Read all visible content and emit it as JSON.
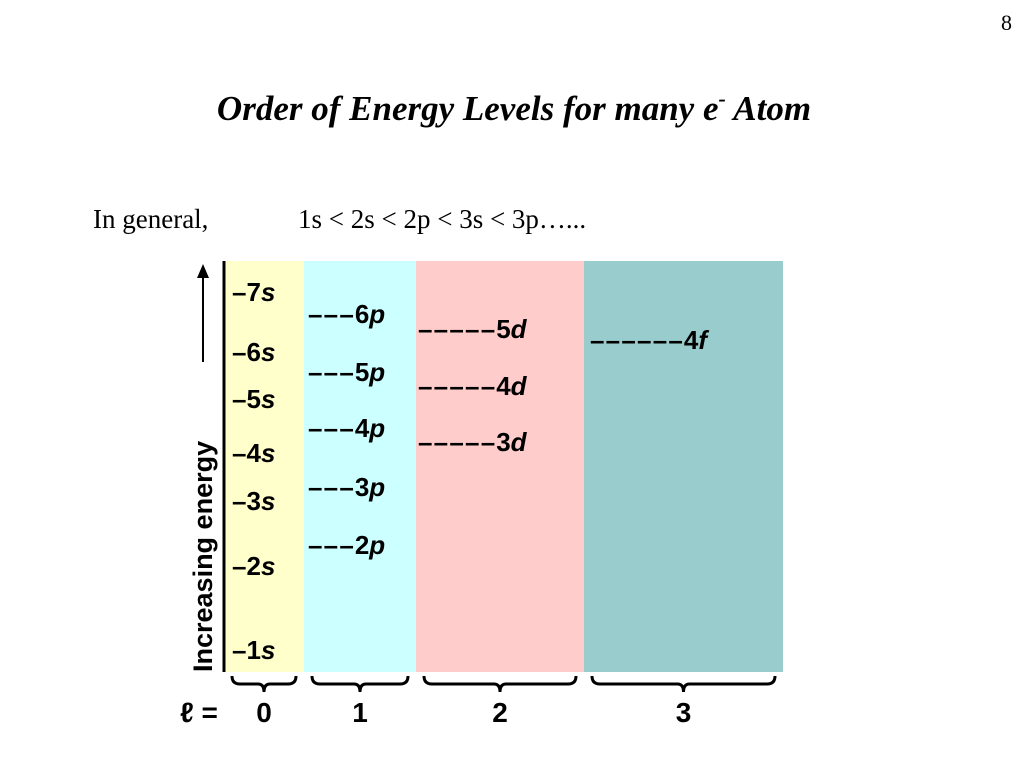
{
  "page_number": "8",
  "title": {
    "text": "Order of Energy Levels for many e",
    "superscript": "-",
    "tail": " Atom"
  },
  "statement": {
    "lead": "In general,",
    "order": "1s < 2s < 2p < 3s < 3p…..."
  },
  "diagram": {
    "axis_label": "Increasing energy",
    "l_label": "ℓ =",
    "columns": [
      {
        "l": "0",
        "letter": "s",
        "levels": [
          "7",
          "6",
          "5",
          "4",
          "3",
          "2",
          "1"
        ]
      },
      {
        "l": "1",
        "letter": "p",
        "levels": [
          "6",
          "5",
          "4",
          "3",
          "2"
        ]
      },
      {
        "l": "2",
        "letter": "d",
        "levels": [
          "5",
          "4",
          "3"
        ]
      },
      {
        "l": "3",
        "letter": "f",
        "levels": [
          "4"
        ]
      }
    ]
  }
}
